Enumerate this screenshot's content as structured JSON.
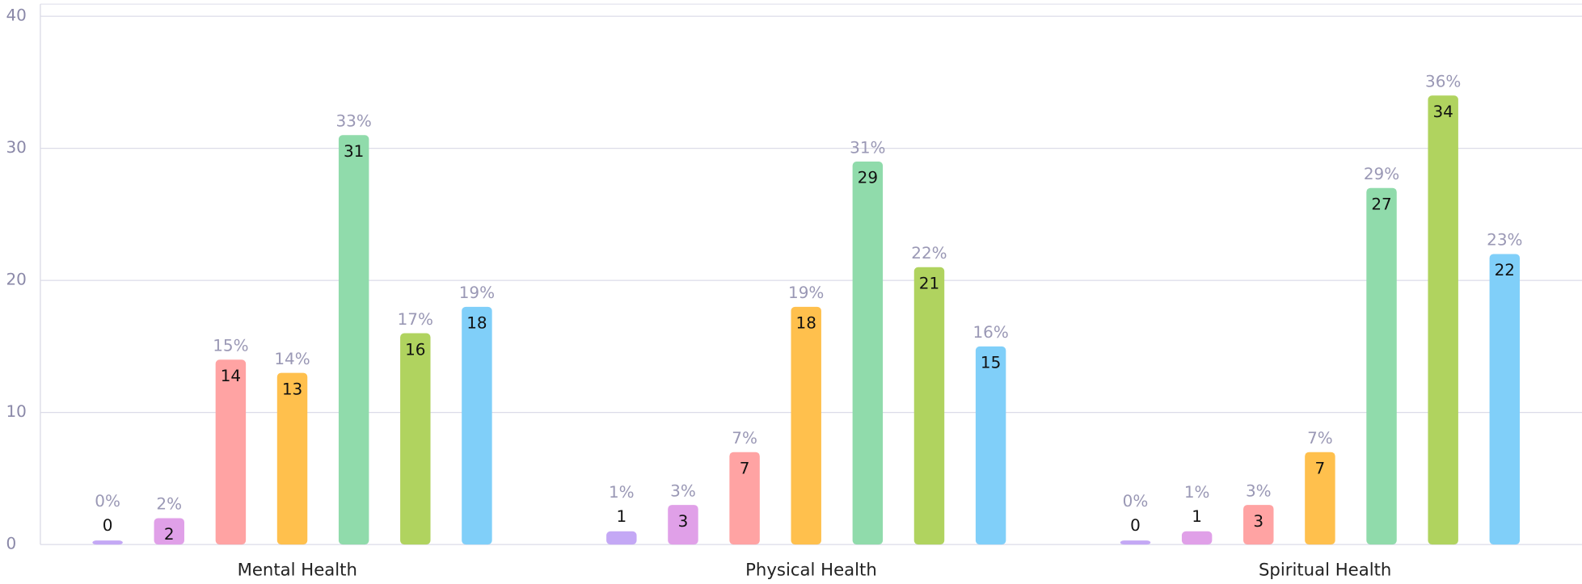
{
  "chart_data": {
    "type": "bar",
    "categories": [
      "Mental Health",
      "Physical Health",
      "Spiritual Health"
    ],
    "series": [
      {
        "color": "#c4a8f5",
        "values": [
          0,
          1,
          0
        ],
        "percent_labels": [
          "0%",
          "1%",
          "0%"
        ]
      },
      {
        "color": "#e0a0e8",
        "values": [
          2,
          3,
          1
        ],
        "percent_labels": [
          "2%",
          "3%",
          "1%"
        ]
      },
      {
        "color": "#ffa3a3",
        "values": [
          14,
          7,
          3
        ],
        "percent_labels": [
          "15%",
          "7%",
          "3%"
        ]
      },
      {
        "color": "#ffc04d",
        "values": [
          13,
          18,
          7
        ],
        "percent_labels": [
          "14%",
          "19%",
          "7%"
        ]
      },
      {
        "color": "#90dbab",
        "values": [
          31,
          29,
          27
        ],
        "percent_labels": [
          "33%",
          "31%",
          "29%"
        ]
      },
      {
        "color": "#b0d35f",
        "values": [
          16,
          21,
          34
        ],
        "percent_labels": [
          "17%",
          "22%",
          "36%"
        ]
      },
      {
        "color": "#80cff9",
        "values": [
          18,
          15,
          22
        ],
        "percent_labels": [
          "19%",
          "16%",
          "23%"
        ]
      }
    ],
    "ylim": [
      0,
      40
    ],
    "yticks": [
      0,
      10,
      20,
      30,
      40
    ],
    "grid": true
  }
}
